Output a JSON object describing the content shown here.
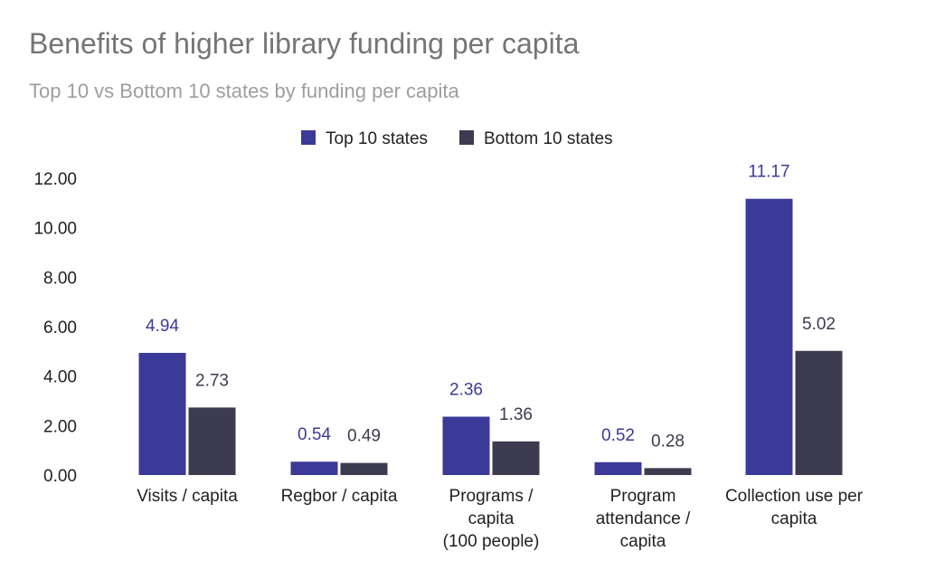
{
  "chart_data": {
    "type": "bar",
    "title": "Benefits of higher library funding per capita",
    "subtitle": "Top 10 vs Bottom 10 states by funding per capita",
    "categories": [
      [
        "Visits / capita"
      ],
      [
        "Regbor / capita"
      ],
      [
        "Programs /",
        "capita",
        "(100 people)"
      ],
      [
        "Program",
        "attendance /",
        "capita"
      ],
      [
        "Collection use per",
        "capita"
      ]
    ],
    "series": [
      {
        "name": "Top 10 states",
        "color": "#3b3a98",
        "values": [
          4.94,
          0.54,
          2.36,
          0.52,
          11.17
        ],
        "labels": [
          "4.94",
          "0.54",
          "2.36",
          "0.52",
          "11.17"
        ]
      },
      {
        "name": "Bottom 10 states",
        "color": "#3d3b4f",
        "values": [
          2.73,
          0.49,
          1.36,
          0.28,
          5.02
        ],
        "labels": [
          "2.73",
          "0.49",
          "1.36",
          "0.28",
          "5.02"
        ]
      }
    ],
    "yticks": [
      "0.00",
      "2.00",
      "4.00",
      "6.00",
      "8.00",
      "10.00",
      "12.00"
    ],
    "ylim": [
      0,
      12
    ],
    "grid": false,
    "legend": "top-center",
    "label_colors": {
      "top": "#3b3a98",
      "bottom": "#3d3b4f"
    }
  }
}
